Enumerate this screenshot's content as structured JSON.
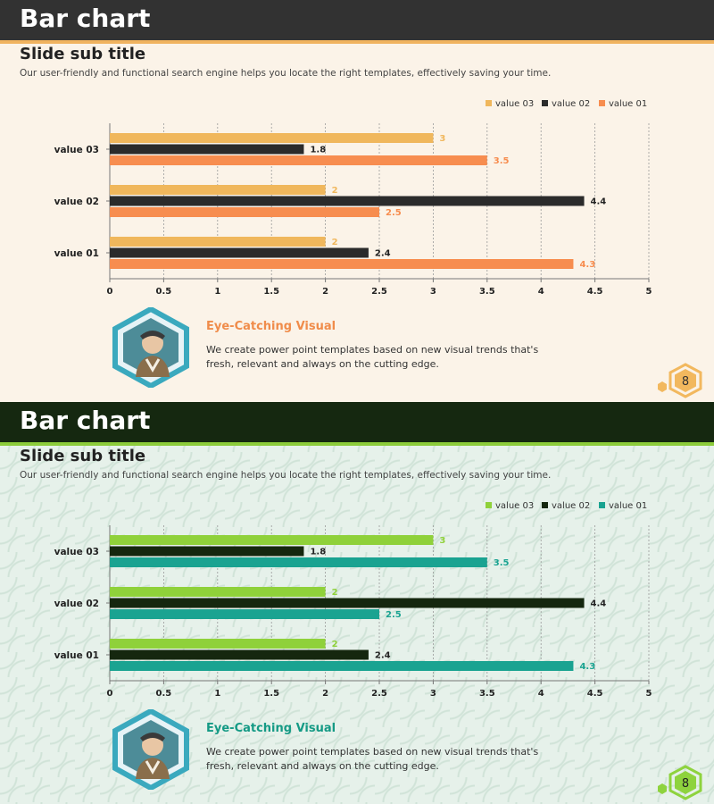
{
  "slides": [
    {
      "title": "Bar chart",
      "subtitle": "Slide sub title",
      "description": "Our user-friendly and functional search engine helps you locate the right templates, effectively saving your time.",
      "callout": {
        "title": "Eye-Catching Visual",
        "body": "We create power point templates based on new visual trends that's fresh, relevant and always on the cutting edge."
      },
      "page_number": "8",
      "colors": {
        "value_03": "#f0b75c",
        "value_02": "#2b2b2b",
        "value_01": "#f78d4f",
        "accent": "#f08c4a",
        "badge": "#f2b85e"
      }
    },
    {
      "title": "Bar chart",
      "subtitle": "Slide sub title",
      "description": "Our user-friendly and functional search engine helps you locate the right templates, effectively saving your time.",
      "callout": {
        "title": "Eye-Catching Visual",
        "body": "We create power point templates based on new visual trends that's fresh, relevant and always on the cutting edge."
      },
      "page_number": "8",
      "colors": {
        "value_03": "#8fd13a",
        "value_02": "#15270f",
        "value_01": "#1aa391",
        "accent": "#159a85",
        "badge": "#8ed33e"
      }
    }
  ],
  "chart_data": [
    {
      "type": "bar",
      "orientation": "horizontal",
      "categories": [
        "value 01",
        "value 02",
        "value 03"
      ],
      "series": [
        {
          "name": "value 03",
          "values": [
            2,
            2,
            3
          ]
        },
        {
          "name": "value 02",
          "values": [
            2.4,
            4.4,
            1.8
          ]
        },
        {
          "name": "value 01",
          "values": [
            4.3,
            2.5,
            3.5
          ]
        }
      ],
      "xlim": [
        0,
        5
      ],
      "xticks": [
        "0",
        "0.5",
        "1",
        "1.5",
        "2",
        "2.5",
        "3",
        "3.5",
        "4",
        "4.5",
        "5"
      ],
      "grid": "vertical dashed",
      "legend": "top-right"
    },
    {
      "type": "bar",
      "orientation": "horizontal",
      "categories": [
        "value 01",
        "value 02",
        "value 03"
      ],
      "series": [
        {
          "name": "value 03",
          "values": [
            2,
            2,
            3
          ]
        },
        {
          "name": "value 02",
          "values": [
            2.4,
            4.4,
            1.8
          ]
        },
        {
          "name": "value 01",
          "values": [
            4.3,
            2.5,
            3.5
          ]
        }
      ],
      "xlim": [
        0,
        5
      ],
      "xticks": [
        "0",
        "0.5",
        "1",
        "1.5",
        "2",
        "2.5",
        "3",
        "3.5",
        "4",
        "4.5",
        "5"
      ],
      "grid": "vertical dashed",
      "legend": "top-right"
    }
  ]
}
